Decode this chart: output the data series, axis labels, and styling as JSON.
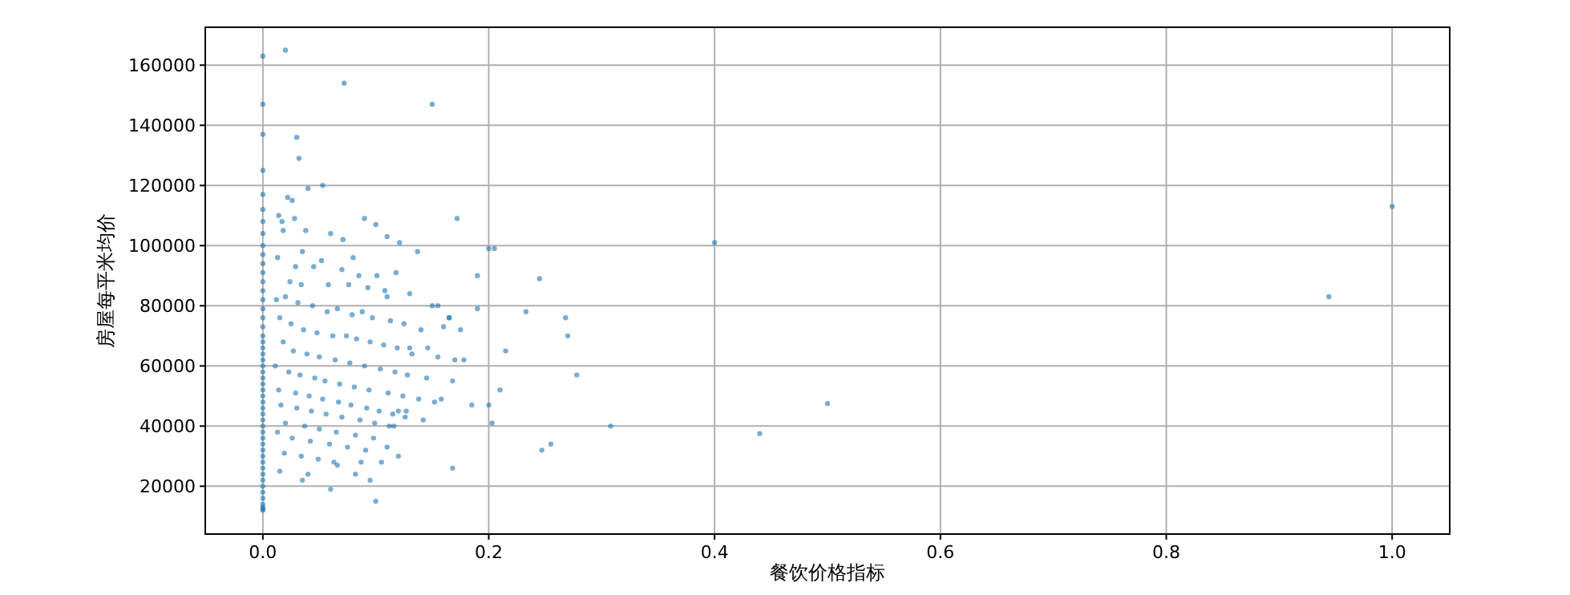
{
  "chart_data": {
    "type": "scatter",
    "xlabel": "餐饮价格指标",
    "ylabel": "房屋每平米均价",
    "xlim": [
      -0.051,
      1.051
    ],
    "ylim": [
      4100,
      172600
    ],
    "xticks": [
      {
        "value": 0,
        "label": "0.0"
      },
      {
        "value": 0.2,
        "label": "0.2"
      },
      {
        "value": 0.4,
        "label": "0.4"
      },
      {
        "value": 0.6,
        "label": "0.6"
      },
      {
        "value": 0.8,
        "label": "0.8"
      },
      {
        "value": 1,
        "label": "1.0"
      }
    ],
    "yticks": [
      20000,
      40000,
      60000,
      80000,
      100000,
      120000,
      140000,
      160000
    ],
    "grid": true,
    "marker": "circle",
    "series": [
      {
        "color": "#1f77b4",
        "x": [
          0,
          0,
          0,
          0,
          0,
          0,
          0,
          0,
          0,
          0,
          0,
          0,
          0,
          0,
          0,
          0,
          0,
          0,
          0,
          0,
          0,
          0,
          0,
          0,
          0,
          0,
          0,
          0,
          0,
          0,
          0,
          0,
          0,
          0,
          0,
          0,
          0,
          0,
          0,
          0,
          0,
          0,
          0,
          0,
          0,
          0,
          0,
          0,
          0,
          0,
          0.02,
          0.072,
          0.15,
          0.03,
          0.032,
          0.04,
          0.053,
          0.022,
          0.026,
          0.014,
          0.017,
          0.018,
          0.028,
          0.038,
          0.06,
          0.071,
          0.09,
          0.1,
          0.11,
          0.121,
          0.137,
          0.035,
          0.013,
          0.08,
          0.052,
          0.029,
          0.045,
          0.07,
          0.085,
          0.101,
          0.118,
          0.024,
          0.034,
          0.058,
          0.076,
          0.093,
          0.108,
          0.13,
          0.15,
          0.165,
          0.19,
          0.2,
          0.012,
          0.02,
          0.031,
          0.044,
          0.057,
          0.066,
          0.079,
          0.088,
          0.097,
          0.113,
          0.125,
          0.14,
          0.16,
          0.175,
          0.015,
          0.025,
          0.036,
          0.048,
          0.062,
          0.074,
          0.083,
          0.095,
          0.107,
          0.119,
          0.132,
          0.146,
          0.155,
          0.018,
          0.027,
          0.039,
          0.05,
          0.064,
          0.077,
          0.09,
          0.104,
          0.117,
          0.128,
          0.145,
          0.17,
          0.011,
          0.023,
          0.033,
          0.046,
          0.055,
          0.068,
          0.081,
          0.094,
          0.111,
          0.124,
          0.138,
          0.152,
          0.168,
          0.014,
          0.029,
          0.041,
          0.053,
          0.067,
          0.078,
          0.092,
          0.103,
          0.115,
          0.126,
          0.142,
          0.158,
          0.016,
          0.03,
          0.043,
          0.056,
          0.07,
          0.086,
          0.099,
          0.112,
          0.127,
          0.02,
          0.037,
          0.05,
          0.065,
          0.082,
          0.098,
          0.116,
          0.013,
          0.026,
          0.042,
          0.059,
          0.075,
          0.091,
          0.11,
          0.019,
          0.034,
          0.049,
          0.063,
          0.087,
          0.105,
          0.015,
          0.04,
          0.066,
          0.095,
          0.035,
          0.06,
          0.082,
          0.1,
          0.12,
          1.0,
          0.944,
          0.5,
          0.44,
          0.4,
          0.308,
          0.278,
          0.27,
          0.268,
          0.255,
          0.247,
          0.245,
          0.233,
          0.215,
          0.21,
          0.205,
          0.203,
          0.2,
          0.19,
          0.185,
          0.178,
          0.172,
          0.168,
          0.165,
          0.155,
          0.13,
          0.12,
          0.11
        ],
        "values": [
          163000,
          147000,
          137000,
          125000,
          117000,
          112000,
          108000,
          104000,
          100000,
          97000,
          94000,
          91000,
          88000,
          85000,
          82000,
          79000,
          76000,
          73000,
          70000,
          68000,
          66000,
          64000,
          62000,
          60000,
          58000,
          56000,
          54000,
          52000,
          50000,
          48000,
          46000,
          44000,
          42000,
          40000,
          38000,
          36000,
          34000,
          32000,
          30000,
          28000,
          26000,
          24000,
          22000,
          20000,
          18000,
          16000,
          14000,
          13000,
          12500,
          12000,
          165000,
          154000,
          147000,
          136000,
          129000,
          119000,
          120000,
          116000,
          115000,
          110000,
          108000,
          105000,
          109000,
          105000,
          104000,
          102000,
          109000,
          107000,
          103000,
          101000,
          98000,
          98000,
          96000,
          96000,
          95000,
          93000,
          93000,
          92000,
          90000,
          90000,
          91000,
          88000,
          87000,
          87000,
          87000,
          86000,
          85000,
          84000,
          80000,
          76000,
          79000,
          99000,
          82000,
          83000,
          81000,
          80000,
          78000,
          79000,
          77000,
          78000,
          76000,
          75000,
          74000,
          72000,
          73000,
          72000,
          76000,
          74000,
          72000,
          71000,
          70000,
          70000,
          69000,
          68000,
          67000,
          66000,
          64000,
          66000,
          63000,
          68000,
          65000,
          64000,
          63000,
          62000,
          61000,
          60000,
          59000,
          58000,
          57000,
          56000,
          62000,
          60000,
          58000,
          57000,
          56000,
          55000,
          54000,
          53000,
          52000,
          51000,
          50000,
          49000,
          48000,
          55000,
          52000,
          51000,
          50000,
          49000,
          48000,
          47000,
          46000,
          45000,
          44000,
          43000,
          42000,
          49000,
          47000,
          46000,
          45000,
          44000,
          43000,
          42000,
          41000,
          40000,
          45000,
          41000,
          40000,
          39000,
          38000,
          37000,
          36000,
          40000,
          38000,
          36000,
          35000,
          34000,
          33000,
          32000,
          33000,
          31000,
          30000,
          29000,
          28000,
          28000,
          28000,
          25000,
          24000,
          27000,
          22000,
          22000,
          19000,
          24000,
          15000,
          30000,
          113000,
          83000,
          47500,
          37500,
          101000,
          40000,
          57000,
          70000,
          76000,
          34000,
          32000,
          89000,
          78000,
          65000,
          52000,
          99000,
          41000,
          47000,
          90000,
          47000,
          62000,
          109000,
          26000,
          76000,
          80000,
          66000,
          45000,
          83000
        ]
      }
    ]
  }
}
